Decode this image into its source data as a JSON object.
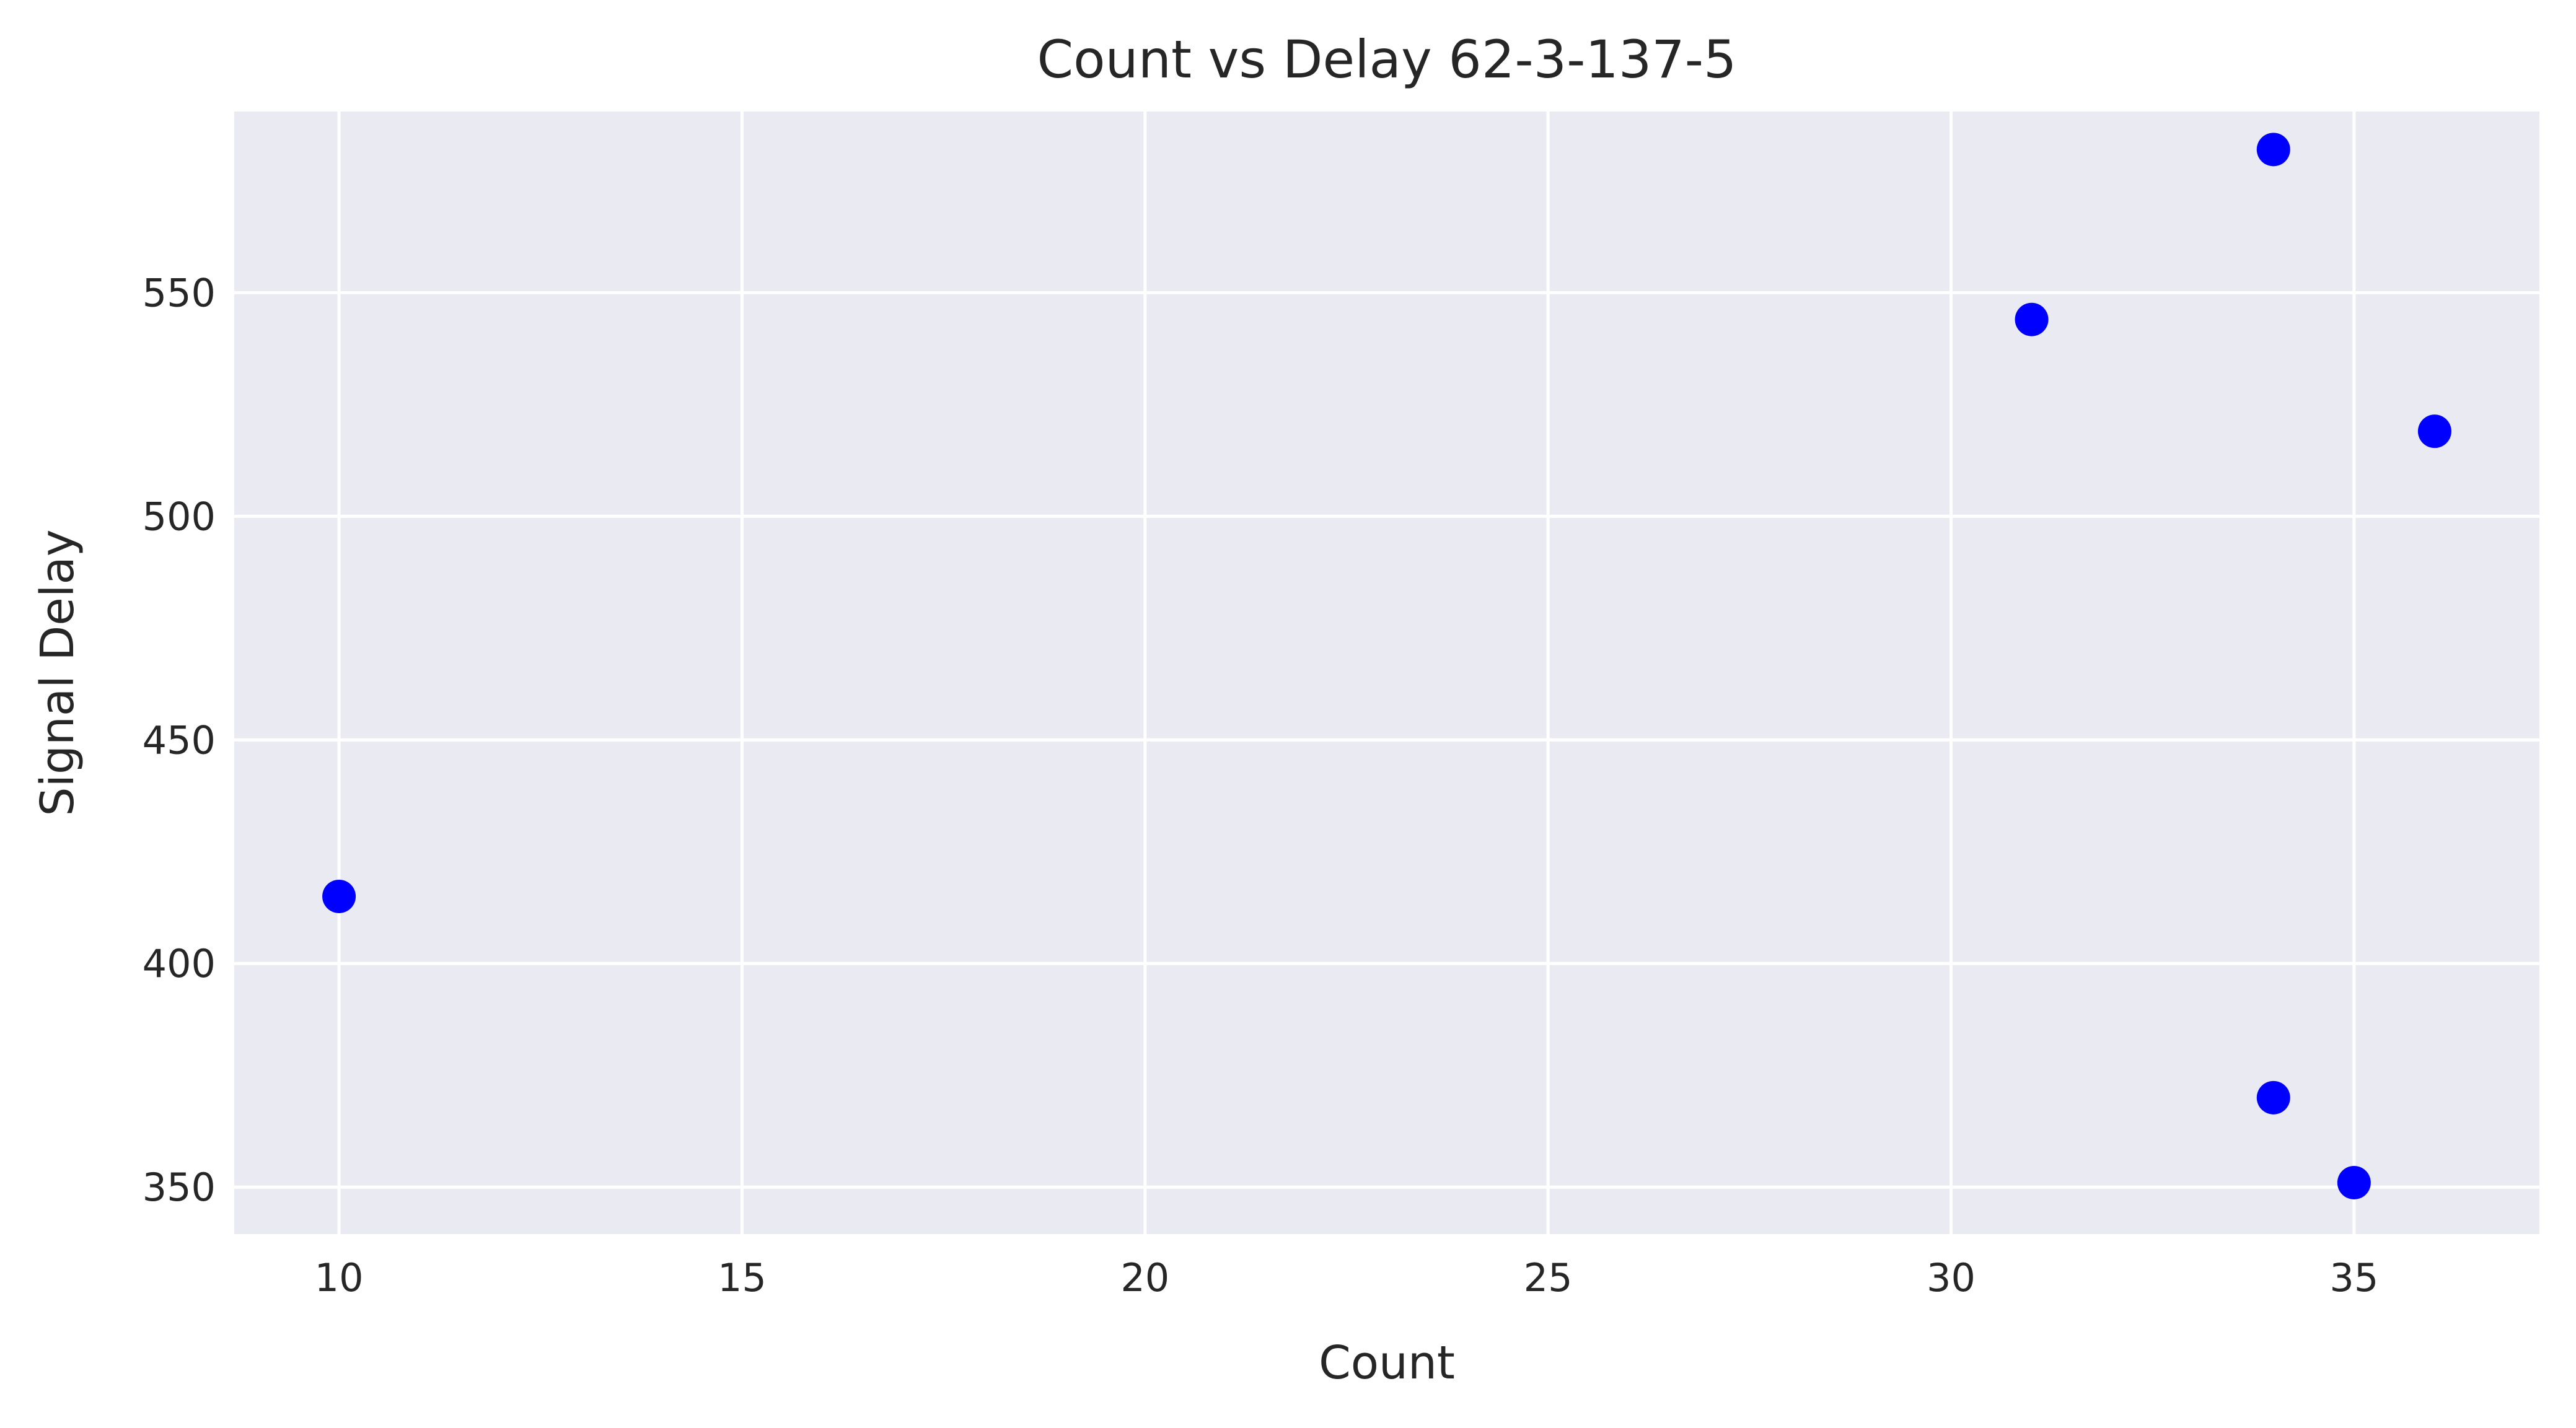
{
  "chart_data": {
    "type": "scatter",
    "title": "Count vs Delay 62-3-137-5",
    "xlabel": "Count",
    "ylabel": "Signal Delay",
    "xlim": [
      8.7,
      37.3
    ],
    "ylim": [
      339.5,
      590.5
    ],
    "x_ticks": [
      10,
      15,
      20,
      25,
      30,
      35
    ],
    "y_ticks": [
      350,
      400,
      450,
      500,
      550
    ],
    "grid": true,
    "legend": "none",
    "colors": {
      "background": "#eaeaf2",
      "grid": "#ffffff",
      "marker": "#0000ff"
    },
    "series": [
      {
        "x": [
          10,
          31,
          34,
          34,
          35,
          36
        ],
        "y": [
          415,
          544,
          582,
          370,
          351,
          519
        ]
      }
    ]
  }
}
